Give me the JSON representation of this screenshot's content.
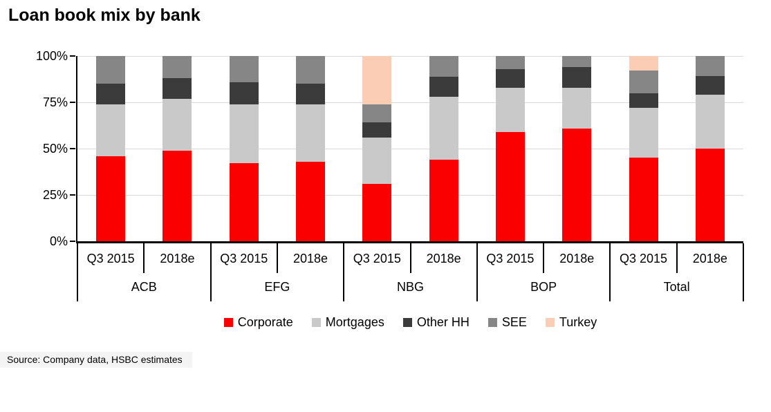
{
  "title": "Loan book mix by bank",
  "source": "Source: Company data, HSBC estimates",
  "colors": {
    "corporate": "#FB0000",
    "mortgages": "#C9C9C9",
    "other_hh": "#3B3B3B",
    "see": "#868686",
    "turkey": "#FACDB4",
    "gridline": "#DADADA",
    "axis": "#000000"
  },
  "chart_data": {
    "type": "bar",
    "stacked": true,
    "unit": "%",
    "title": "Loan book mix by bank",
    "xlabel": "",
    "ylabel": "",
    "ylim": [
      0,
      100
    ],
    "grid": "horizontal",
    "legend_position": "bottom",
    "yticks": [
      "0%",
      "25%",
      "50%",
      "75%",
      "100%"
    ],
    "ytick_values": [
      0,
      25,
      50,
      75,
      100
    ],
    "groups": [
      "ACB",
      "EFG",
      "NBG",
      "BOP",
      "Total"
    ],
    "periods": [
      "Q3 2015",
      "2018e"
    ],
    "columns": [
      "ACB Q3 2015",
      "ACB 2018e",
      "EFG Q3 2015",
      "EFG 2018e",
      "NBG Q3 2015",
      "NBG 2018e",
      "BOP Q3 2015",
      "BOP 2018e",
      "Total Q3 2015",
      "Total 2018e"
    ],
    "series": [
      {
        "name": "Corporate",
        "color": "#FB0000",
        "values": [
          46,
          49,
          42,
          43,
          31,
          44,
          59,
          61,
          45,
          50
        ]
      },
      {
        "name": "Mortgages",
        "color": "#C9C9C9",
        "values": [
          28,
          28,
          32,
          31,
          25,
          34,
          24,
          22,
          27,
          29
        ]
      },
      {
        "name": "Other HH",
        "color": "#3B3B3B",
        "values": [
          11,
          11,
          12,
          11,
          8,
          11,
          10,
          11,
          8,
          10
        ]
      },
      {
        "name": "SEE",
        "color": "#868686",
        "values": [
          15,
          12,
          14,
          15,
          10,
          11,
          7,
          6,
          12,
          11
        ]
      },
      {
        "name": "Turkey",
        "color": "#FACDB4",
        "values": [
          0,
          0,
          0,
          0,
          26,
          0,
          0,
          0,
          8,
          0
        ]
      }
    ]
  },
  "legend": [
    {
      "label": "Corporate",
      "color": "#FB0000"
    },
    {
      "label": "Mortgages",
      "color": "#C9C9C9"
    },
    {
      "label": "Other HH",
      "color": "#3B3B3B"
    },
    {
      "label": "SEE",
      "color": "#868686"
    },
    {
      "label": "Turkey",
      "color": "#FACDB4"
    }
  ]
}
